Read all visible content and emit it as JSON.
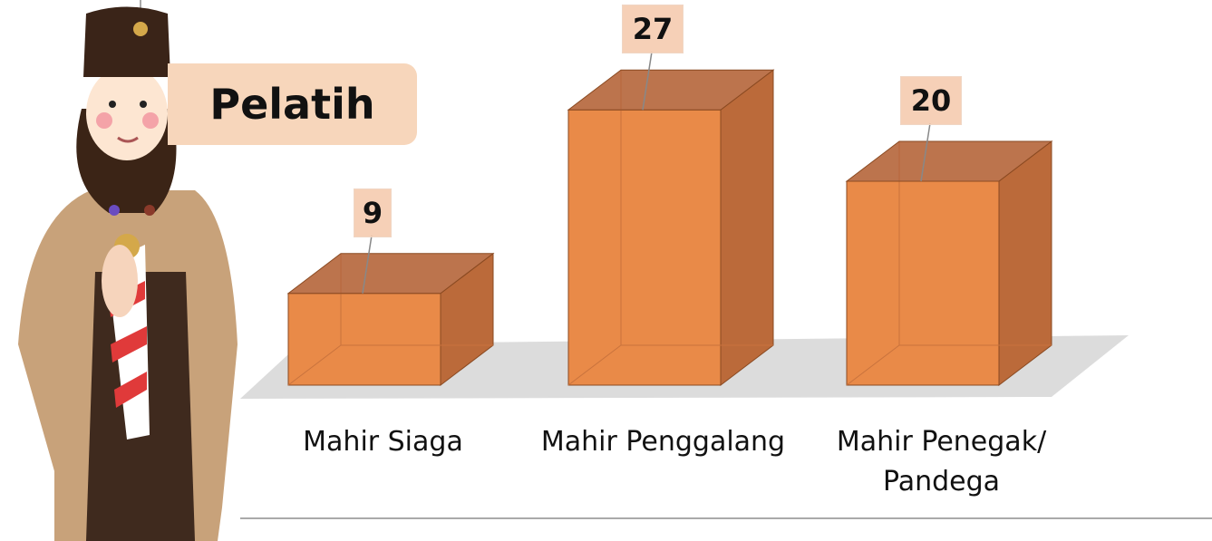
{
  "title": "Pelatih",
  "chart_data": {
    "type": "bar3d",
    "categories": [
      "Mahir Siaga",
      "Mahir Penggalang",
      "Mahir Penegak/ Pandega"
    ],
    "values": [
      9,
      27,
      20
    ],
    "color": "#e98a48"
  }
}
